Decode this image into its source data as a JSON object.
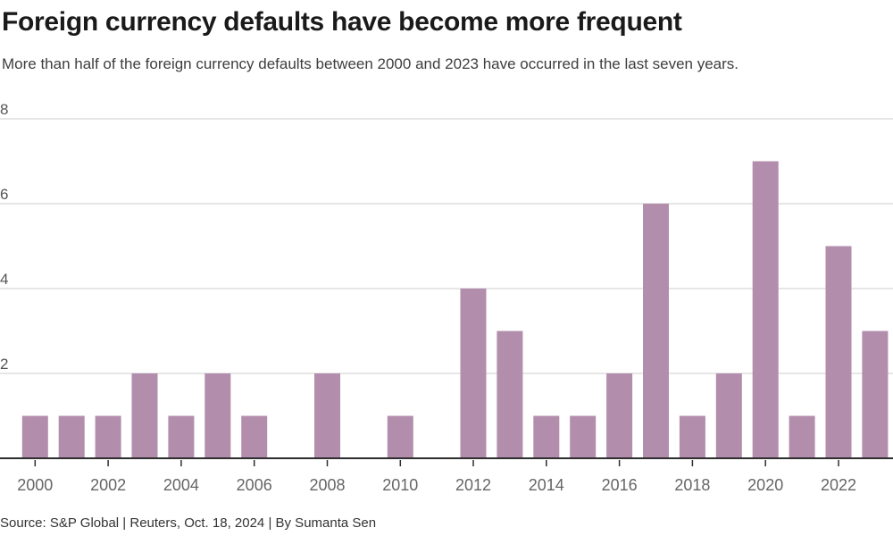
{
  "header": {
    "title": "Foreign currency defaults have become more frequent",
    "subtitle": "More than half of the foreign currency defaults between 2000 and 2023 have occurred in the last seven years."
  },
  "footer": {
    "source": "Source: S&P Global | Reuters, Oct. 18, 2024 | By Sumanta Sen"
  },
  "chart_data": {
    "type": "bar",
    "title": "Foreign currency defaults have become more frequent",
    "subtitle": "More than half of the foreign currency defaults between 2000 and 2023 have occurred in the last seven years.",
    "xlabel": "",
    "ylabel": "",
    "categories": [
      2000,
      2001,
      2002,
      2003,
      2004,
      2005,
      2006,
      2007,
      2008,
      2009,
      2010,
      2011,
      2012,
      2013,
      2014,
      2015,
      2016,
      2017,
      2018,
      2019,
      2020,
      2021,
      2022,
      2023
    ],
    "values": [
      1,
      1,
      1,
      2,
      1,
      2,
      1,
      0,
      2,
      0,
      1,
      0,
      4,
      3,
      1,
      1,
      2,
      6,
      1,
      2,
      7,
      1,
      5,
      3
    ],
    "ylim": [
      0,
      8
    ],
    "yticks": [
      2,
      4,
      6,
      8
    ],
    "xticks": [
      2000,
      2002,
      2004,
      2006,
      2008,
      2010,
      2012,
      2014,
      2016,
      2018,
      2020,
      2022
    ],
    "grid": true,
    "legend": "none",
    "colors": {
      "bar": "#b28dac",
      "gridline": "#cccccc",
      "axis": "#2e2e2e",
      "tick": "#2e2e2e",
      "x_label": "#666666",
      "y_label": "#555555"
    }
  }
}
